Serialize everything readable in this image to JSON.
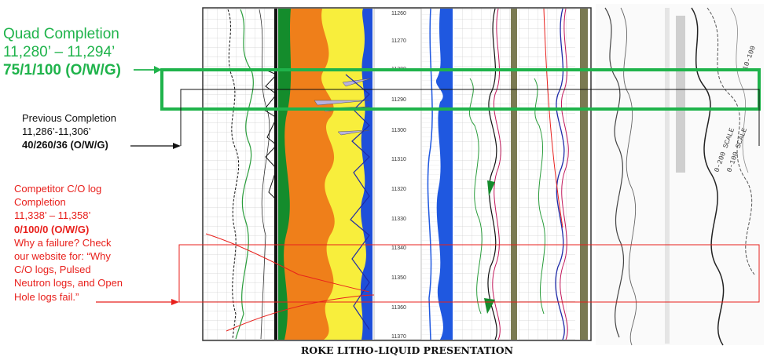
{
  "quad_completion": {
    "title": "Quad Completion",
    "range": "11,280’ – 11,294’",
    "result": "75/1/100 (O/W/G)",
    "color": "#1fb34b"
  },
  "previous_completion": {
    "title": "Previous Completion",
    "range": "11,286’-11,306’",
    "result": "40/260/36 (O/W/G)"
  },
  "competitor": {
    "lines": [
      "Competitor C/O log",
      "Completion",
      "11,338’ – 11,358’"
    ],
    "result": "0/100/0 (O/W/G)",
    "note": [
      "Why a failure? Check",
      "our website for: “Why",
      "C/O logs, Pulsed",
      "Neutron logs, and Open",
      "Hole logs fail.”"
    ],
    "color": "#e8201c"
  },
  "depth_scale": [
    "11260",
    "11270",
    "11280",
    "11290",
    "11300",
    "11310",
    "11320",
    "11330",
    "11340",
    "11350",
    "11360",
    "11370"
  ],
  "scan_annotations": [
    "0-100 SCALE",
    "0-200 SCALE",
    "10-100"
  ],
  "caption": "ROKE LITHO-LIQUID PRESENTATION"
}
